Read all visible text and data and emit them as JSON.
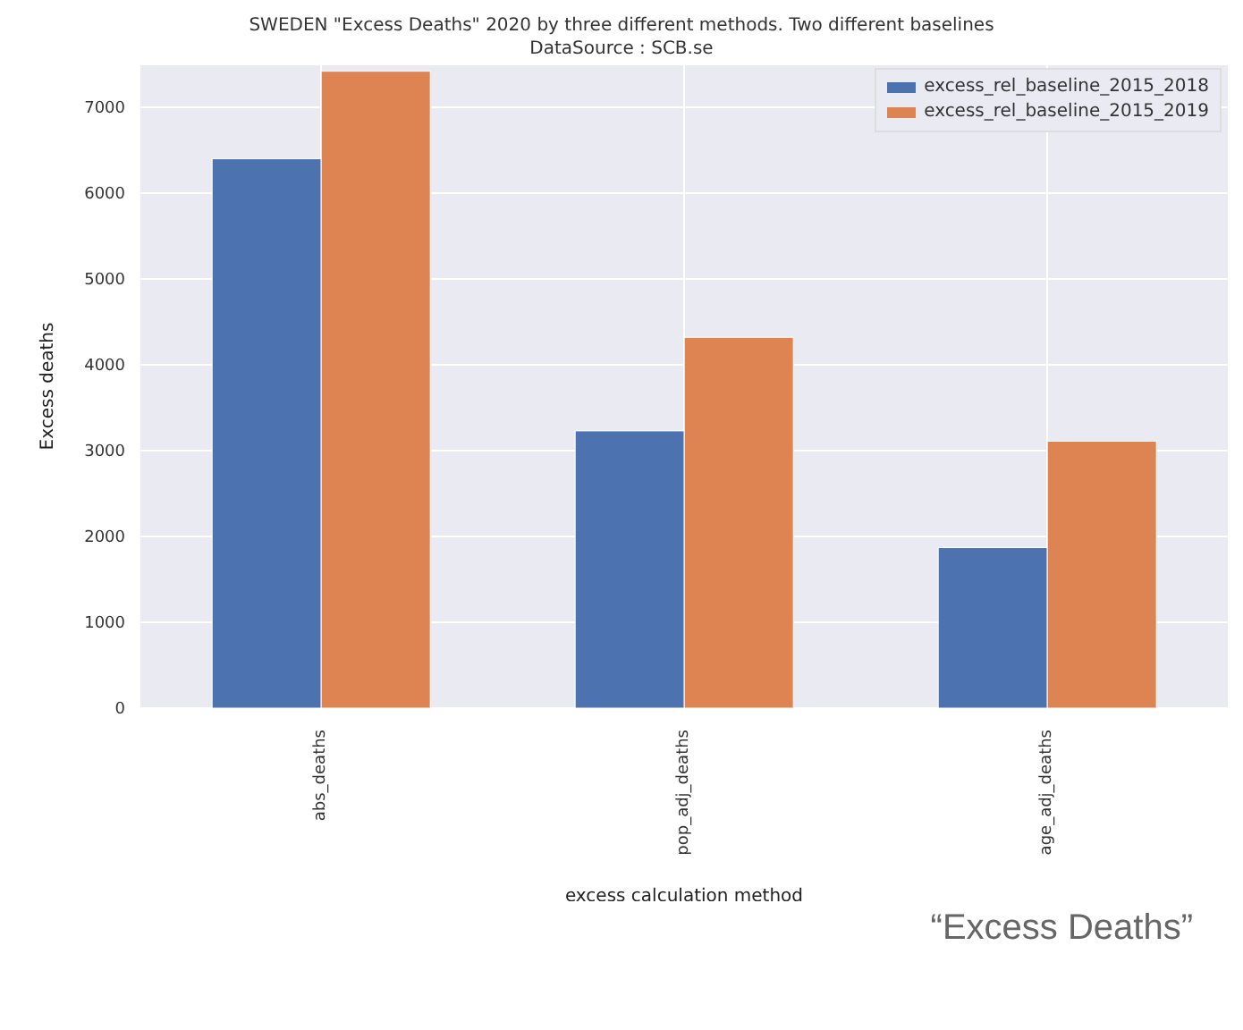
{
  "chart_data": {
    "type": "bar",
    "title": "SWEDEN \"Excess Deaths\" 2020 by three different methods. Two different baselines",
    "subtitle": "DataSource : SCB.se",
    "xlabel": "excess calculation method",
    "ylabel": "Excess deaths",
    "categories": [
      "abs_deaths",
      "pop_adj_deaths",
      "age_adj_deaths"
    ],
    "series": [
      {
        "name": "excess_rel_baseline_2015_2018",
        "color": "#4c72b0",
        "values": [
          6400,
          3230,
          1870
        ]
      },
      {
        "name": "excess_rel_baseline_2015_2019",
        "color": "#dd8452",
        "values": [
          7420,
          4320,
          3110
        ]
      }
    ],
    "ylim": [
      0,
      7500
    ],
    "yticks": [
      0,
      1000,
      2000,
      3000,
      4000,
      5000,
      6000,
      7000
    ],
    "grid": true,
    "legend": "top right",
    "annotations": [
      "“Excess Deaths”"
    ]
  }
}
